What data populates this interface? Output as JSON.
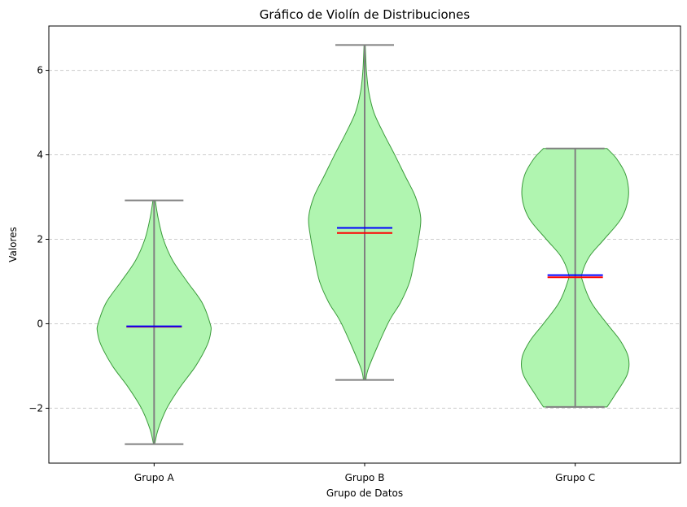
{
  "chart_data": {
    "type": "violin",
    "title": "Gráfico de Violín de Distribuciones",
    "xlabel": "Grupo de Datos",
    "ylabel": "Valores",
    "categories": [
      "Grupo A",
      "Grupo B",
      "Grupo C"
    ],
    "ylim": [
      -3.3,
      7.05
    ],
    "yticks": [
      -2,
      0,
      2,
      4,
      6
    ],
    "ytick_labels": [
      "−2",
      "0",
      "2",
      "4",
      "6"
    ],
    "grid": {
      "axis": "y",
      "style": "dashed"
    },
    "colors": {
      "body_fill": "#b0f5b0",
      "body_edge": "#3a9a3a",
      "extrema_lines": "#808080",
      "median_line": "#ff0000",
      "mean_line": "#0000ff",
      "grid": "#cccccc"
    },
    "violins": [
      {
        "category": "Grupo A",
        "min": -2.85,
        "max": 2.92,
        "median": -0.07,
        "mean": -0.06,
        "profile": [
          [
            -2.85,
            0.01
          ],
          [
            -2.5,
            0.07
          ],
          [
            -2.0,
            0.22
          ],
          [
            -1.5,
            0.45
          ],
          [
            -1.0,
            0.72
          ],
          [
            -0.5,
            0.92
          ],
          [
            -0.2,
            0.98
          ],
          [
            0.0,
            0.97
          ],
          [
            0.5,
            0.83
          ],
          [
            1.0,
            0.57
          ],
          [
            1.5,
            0.32
          ],
          [
            2.0,
            0.16
          ],
          [
            2.5,
            0.07
          ],
          [
            2.92,
            0.02
          ]
        ]
      },
      {
        "category": "Grupo B",
        "min": -1.33,
        "max": 6.6,
        "median": 2.15,
        "mean": 2.27,
        "profile": [
          [
            -1.33,
            0.02
          ],
          [
            -1.0,
            0.08
          ],
          [
            0.0,
            0.4
          ],
          [
            0.5,
            0.62
          ],
          [
            1.0,
            0.78
          ],
          [
            1.5,
            0.86
          ],
          [
            2.0,
            0.93
          ],
          [
            2.5,
            0.97
          ],
          [
            3.0,
            0.88
          ],
          [
            3.5,
            0.7
          ],
          [
            4.0,
            0.52
          ],
          [
            4.5,
            0.33
          ],
          [
            5.0,
            0.16
          ],
          [
            5.5,
            0.07
          ],
          [
            6.0,
            0.03
          ],
          [
            6.6,
            0.01
          ]
        ]
      },
      {
        "category": "Grupo C",
        "min": -1.97,
        "max": 4.15,
        "median": 1.1,
        "mean": 1.15,
        "profile": [
          [
            -1.97,
            0.55
          ],
          [
            -1.7,
            0.68
          ],
          [
            -1.2,
            0.9
          ],
          [
            -0.8,
            0.92
          ],
          [
            -0.4,
            0.78
          ],
          [
            0.0,
            0.55
          ],
          [
            0.5,
            0.28
          ],
          [
            1.0,
            0.13
          ],
          [
            1.2,
            0.12
          ],
          [
            1.6,
            0.25
          ],
          [
            2.0,
            0.5
          ],
          [
            2.5,
            0.8
          ],
          [
            3.0,
            0.92
          ],
          [
            3.5,
            0.88
          ],
          [
            3.9,
            0.72
          ],
          [
            4.15,
            0.55
          ]
        ]
      }
    ]
  }
}
